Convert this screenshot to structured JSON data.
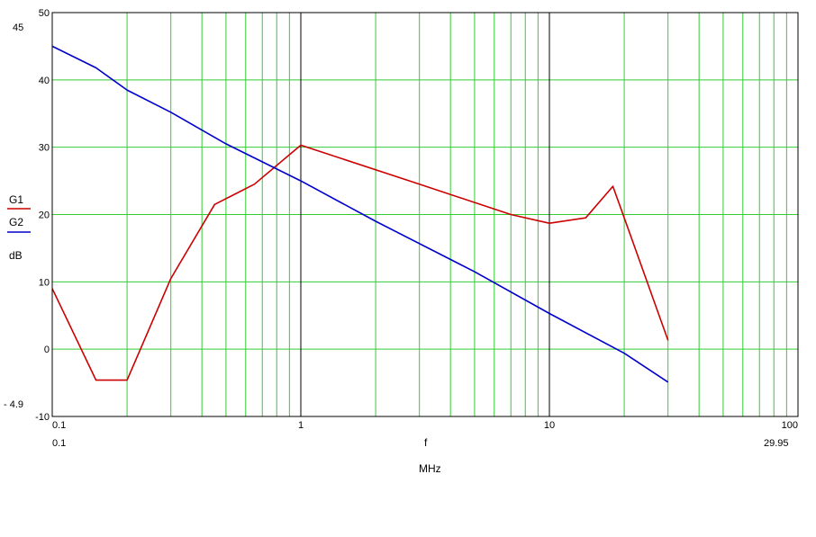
{
  "chart_data": {
    "type": "line",
    "x_scale": "log",
    "xlim": [
      0.1,
      100
    ],
    "ylim": [
      -10,
      50
    ],
    "x_ticks": [
      "0.1",
      "1",
      "10",
      "100"
    ],
    "y_ticks": [
      "-10",
      "0",
      "10",
      "20",
      "30",
      "40",
      "50"
    ],
    "xlabel": "f",
    "xunit": "MHz",
    "ylabel_unit": "dB",
    "range_markers": {
      "x_min": "0.1",
      "x_max": "29.95",
      "y_max": "45",
      "y_min": "- 4.9"
    },
    "grid": true,
    "series": [
      {
        "name": "G1",
        "color": "#cc0000",
        "x": [
          0.1,
          0.15,
          0.2,
          0.3,
          0.45,
          0.65,
          1.0,
          3.0,
          7.0,
          10.0,
          14.0,
          18.0,
          20.0,
          30.0
        ],
        "y": [
          9,
          -4.6,
          -4.6,
          10.5,
          21.5,
          24.5,
          30.3,
          24.5,
          20.0,
          18.7,
          19.5,
          24.2,
          19.5,
          1.3
        ]
      },
      {
        "name": "G2",
        "color": "#0000cc",
        "x": [
          0.1,
          0.15,
          0.2,
          0.3,
          0.5,
          1.0,
          2.0,
          5.0,
          10.0,
          20.0,
          30.0
        ],
        "y": [
          45,
          41.8,
          38.5,
          35.2,
          30.5,
          25.0,
          19.0,
          11.5,
          5.3,
          -0.6,
          -4.9
        ]
      }
    ]
  }
}
